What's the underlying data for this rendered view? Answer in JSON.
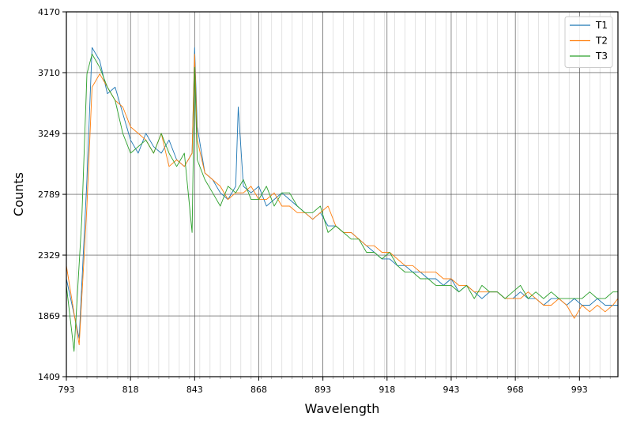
{
  "chart_data": {
    "type": "line",
    "title": "",
    "xlabel": "Wavelength",
    "ylabel": "Counts",
    "xlim": [
      793,
      1008
    ],
    "ylim": [
      1409,
      4170
    ],
    "x_ticks": [
      793,
      818,
      843,
      868,
      893,
      918,
      943,
      968,
      993
    ],
    "y_ticks": [
      1409,
      1869,
      2329,
      2789,
      3249,
      3710,
      4170
    ],
    "x_minor_step": 4,
    "grid": true,
    "legend_position": "top-right",
    "series": [
      {
        "name": "T1",
        "color": "#1f77b4",
        "x": [
          793,
          798,
          801,
          803,
          806,
          809,
          812,
          815,
          818,
          821,
          824,
          827,
          830,
          833,
          836,
          839,
          842,
          843,
          844,
          847,
          850,
          853,
          856,
          859,
          860,
          862,
          865,
          868,
          871,
          874,
          877,
          880,
          883,
          886,
          889,
          892,
          895,
          898,
          901,
          904,
          907,
          910,
          913,
          916,
          919,
          922,
          925,
          928,
          931,
          934,
          937,
          940,
          943,
          946,
          949,
          952,
          955,
          958,
          961,
          964,
          967,
          970,
          973,
          976,
          979,
          982,
          985,
          988,
          991,
          994,
          997,
          1000,
          1003,
          1006,
          1008
        ],
        "y": [
          2150,
          1700,
          2900,
          3900,
          3800,
          3550,
          3600,
          3400,
          3200,
          3100,
          3250,
          3150,
          3100,
          3200,
          3050,
          3000,
          3100,
          3900,
          3300,
          2950,
          2900,
          2800,
          2750,
          2850,
          3450,
          2850,
          2800,
          2850,
          2700,
          2750,
          2800,
          2750,
          2700,
          2650,
          2600,
          2650,
          2550,
          2550,
          2500,
          2500,
          2450,
          2400,
          2350,
          2300,
          2300,
          2250,
          2250,
          2200,
          2200,
          2150,
          2150,
          2100,
          2150,
          2050,
          2100,
          2050,
          2000,
          2050,
          2050,
          2000,
          2000,
          2050,
          2000,
          2000,
          1950,
          2000,
          2000,
          1950,
          2000,
          1950,
          1950,
          2000,
          1950,
          1950,
          1950
        ]
      },
      {
        "name": "T2",
        "color": "#ff7f0e",
        "x": [
          793,
          798,
          801,
          803,
          806,
          809,
          812,
          815,
          818,
          821,
          824,
          827,
          830,
          833,
          836,
          839,
          842,
          843,
          844,
          847,
          850,
          853,
          856,
          859,
          862,
          865,
          868,
          871,
          874,
          877,
          880,
          883,
          886,
          889,
          892,
          895,
          898,
          901,
          904,
          907,
          910,
          913,
          916,
          919,
          922,
          925,
          928,
          931,
          934,
          937,
          940,
          943,
          946,
          949,
          952,
          955,
          958,
          961,
          964,
          967,
          970,
          973,
          976,
          979,
          982,
          985,
          988,
          991,
          994,
          997,
          1000,
          1003,
          1006,
          1008
        ],
        "y": [
          2250,
          1650,
          2700,
          3600,
          3700,
          3600,
          3500,
          3450,
          3300,
          3250,
          3200,
          3100,
          3250,
          3000,
          3050,
          3000,
          3100,
          3850,
          3200,
          2950,
          2900,
          2850,
          2750,
          2800,
          2800,
          2850,
          2750,
          2750,
          2800,
          2700,
          2700,
          2650,
          2650,
          2600,
          2650,
          2700,
          2550,
          2500,
          2500,
          2450,
          2400,
          2400,
          2350,
          2350,
          2300,
          2250,
          2250,
          2200,
          2200,
          2200,
          2150,
          2150,
          2100,
          2100,
          2050,
          2050,
          2050,
          2050,
          2000,
          2000,
          2000,
          2050,
          2000,
          1950,
          1950,
          2000,
          1950,
          1850,
          1950,
          1900,
          1950,
          1900,
          1950,
          2000
        ]
      },
      {
        "name": "T3",
        "color": "#2ca02c",
        "x": [
          793,
          796,
          799,
          801,
          803,
          806,
          809,
          812,
          815,
          818,
          821,
          824,
          827,
          830,
          833,
          836,
          839,
          842,
          843,
          844,
          847,
          850,
          853,
          856,
          859,
          862,
          865,
          868,
          871,
          874,
          877,
          880,
          883,
          886,
          889,
          892,
          895,
          898,
          901,
          904,
          907,
          910,
          913,
          916,
          919,
          922,
          925,
          928,
          931,
          934,
          937,
          940,
          943,
          946,
          949,
          952,
          955,
          958,
          961,
          964,
          967,
          970,
          973,
          976,
          979,
          982,
          985,
          988,
          991,
          994,
          997,
          1000,
          1003,
          1006,
          1008
        ],
        "y": [
          2100,
          1600,
          2600,
          3700,
          3850,
          3750,
          3600,
          3500,
          3250,
          3100,
          3150,
          3200,
          3100,
          3250,
          3100,
          3000,
          3100,
          2500,
          3750,
          3050,
          2900,
          2800,
          2700,
          2850,
          2800,
          2900,
          2750,
          2750,
          2850,
          2700,
          2800,
          2800,
          2700,
          2650,
          2650,
          2700,
          2500,
          2550,
          2500,
          2450,
          2450,
          2350,
          2350,
          2300,
          2350,
          2250,
          2200,
          2200,
          2150,
          2150,
          2100,
          2100,
          2100,
          2050,
          2100,
          2000,
          2100,
          2050,
          2050,
          2000,
          2050,
          2100,
          2000,
          2050,
          2000,
          2050,
          2000,
          2000,
          2000,
          2000,
          2050,
          2000,
          2000,
          2050,
          2050
        ]
      }
    ]
  }
}
